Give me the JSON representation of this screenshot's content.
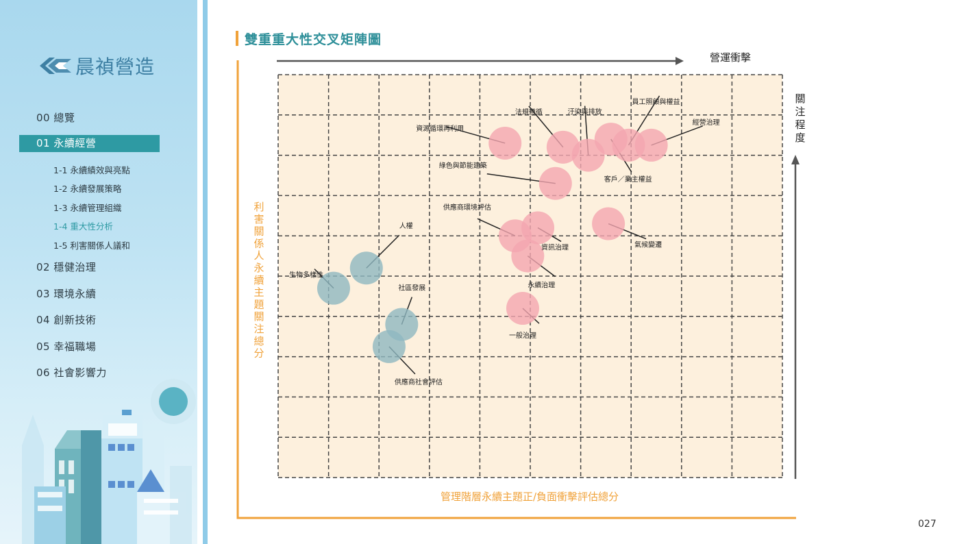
{
  "sidebar": {
    "logo_text": "晨禎營造",
    "items": [
      {
        "label": "00 總覽"
      },
      {
        "label": "01 永續經營"
      },
      {
        "label": "02 穩健治理"
      },
      {
        "label": "03 環境永續"
      },
      {
        "label": "04 創新技術"
      },
      {
        "label": "05 幸福職場"
      },
      {
        "label": "06 社會影響力"
      }
    ],
    "sub_items": [
      {
        "label": "1-1 永續績效與亮點"
      },
      {
        "label": "1-2 永續發展策略"
      },
      {
        "label": "1-3 永續管理組織"
      },
      {
        "label": "1-4 重大性分析"
      },
      {
        "label": "1-5 利害關係人議和"
      }
    ]
  },
  "page": {
    "title": "雙重重大性交叉矩陣圖",
    "page_number": "027"
  },
  "colors": {
    "accent_teal": "#2e9aa3",
    "orange": "#f0a23a",
    "positive_bubble": "#f4a6b0",
    "negative_bubble": "#8fb8c0",
    "grid_bg": "#fdf0dd"
  },
  "chart_data": {
    "type": "scatter",
    "title": "雙重重大性交叉矩陣圖",
    "top_axis_label": "營運衝擊",
    "right_axis_label": "關注程度",
    "xlabel": "管理階層永續主題正/負面衝擊評估總分",
    "ylabel": "利害關係人永續主題關注總分",
    "grid_cols": 10,
    "grid_rows": 10,
    "xlim": [
      0,
      10
    ],
    "ylim": [
      0,
      10
    ],
    "series": [
      {
        "group": "positive",
        "points": [
          {
            "label": "法規遵循",
            "x": 5.65,
            "y": 8.2
          },
          {
            "label": "汙染與排放",
            "x": 6.15,
            "y": 8.0
          },
          {
            "label": "員工照顧與權益",
            "x": 6.95,
            "y": 8.25
          },
          {
            "label": "經營治理",
            "x": 7.4,
            "y": 8.25
          },
          {
            "label": "資源循環再利用",
            "x": 4.5,
            "y": 8.3
          },
          {
            "label": "客戶／業主權益",
            "x": 6.6,
            "y": 8.4
          },
          {
            "label": "綠色與節能建築",
            "x": 5.5,
            "y": 7.3
          },
          {
            "label": "供應商環境評估",
            "x": 4.7,
            "y": 6.0
          },
          {
            "label": "資訊治理",
            "x": 5.15,
            "y": 6.2
          },
          {
            "label": "氣候變遷",
            "x": 6.55,
            "y": 6.3
          },
          {
            "label": "永續治理",
            "x": 4.95,
            "y": 5.5
          },
          {
            "label": "一般治理",
            "x": 4.85,
            "y": 4.2
          }
        ]
      },
      {
        "group": "negative",
        "points": [
          {
            "label": "人權",
            "x": 1.75,
            "y": 5.2
          },
          {
            "label": "生物多樣性",
            "x": 1.1,
            "y": 4.7
          },
          {
            "label": "社區發展",
            "x": 2.45,
            "y": 3.8
          },
          {
            "label": "供應商社會評估",
            "x": 2.2,
            "y": 3.25
          }
        ]
      }
    ]
  }
}
